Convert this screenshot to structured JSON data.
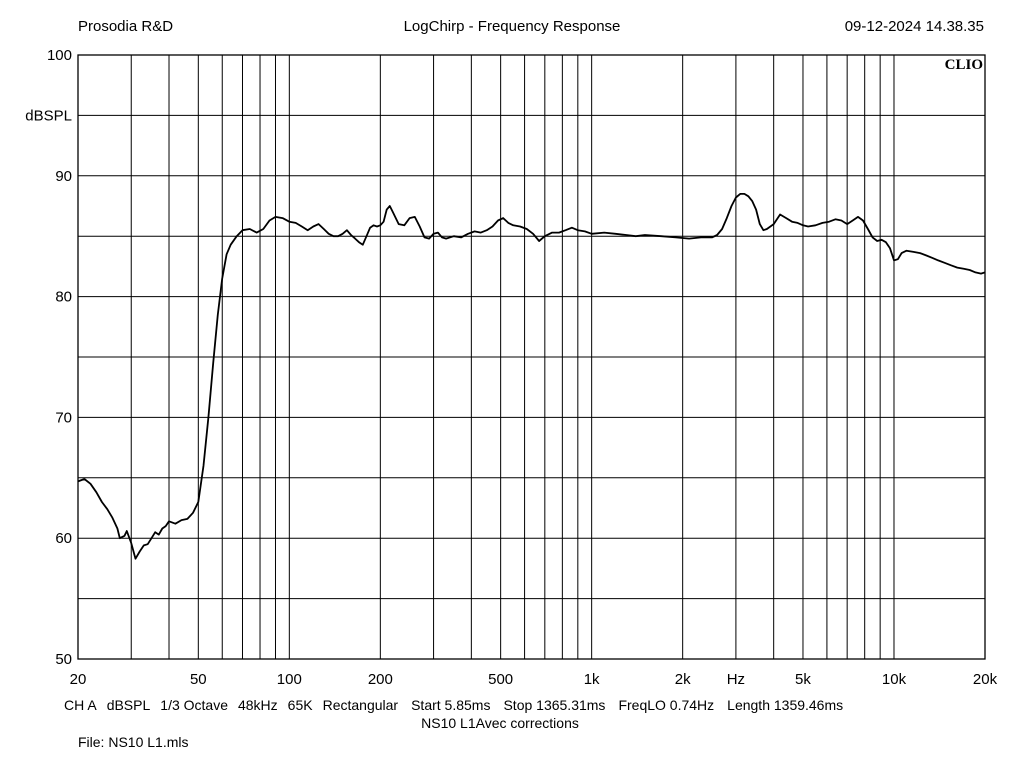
{
  "header": {
    "left": "Prosodia R&D",
    "center": "LogChirp - Frequency Response",
    "right": "09-12-2024 14.38.35"
  },
  "brand": "CLIO",
  "footer": {
    "info": [
      "CH A",
      "dBSPL",
      "1/3 Octave",
      "48kHz",
      "65K",
      "Rectangular",
      "Start 5.85ms",
      "Stop 1365.31ms",
      "FreqLO 0.74Hz",
      "Length 1359.46ms"
    ],
    "subtitle": "NS10 L1Avec corrections",
    "file": "File: NS10 L1.mls"
  },
  "chart_data": {
    "type": "line",
    "title": "LogChirp - Frequency Response",
    "xlabel": "Hz",
    "ylabel": "dBSPL",
    "x_scale": "log",
    "xlim": [
      20,
      20000
    ],
    "ylim": [
      50,
      100
    ],
    "grid": true,
    "x_ticks": [
      {
        "value": 20,
        "label": "20"
      },
      {
        "value": 50,
        "label": "50"
      },
      {
        "value": 100,
        "label": "100"
      },
      {
        "value": 200,
        "label": "200"
      },
      {
        "value": 500,
        "label": "500"
      },
      {
        "value": 1000,
        "label": "1k"
      },
      {
        "value": 2000,
        "label": "2k"
      },
      {
        "value": 3000,
        "label": "Hz"
      },
      {
        "value": 5000,
        "label": "5k"
      },
      {
        "value": 10000,
        "label": "10k"
      },
      {
        "value": 20000,
        "label": "20k"
      }
    ],
    "y_ticks": [
      {
        "value": 100,
        "label": "100"
      },
      {
        "value": 95,
        "label": "dBSPL"
      },
      {
        "value": 90,
        "label": "90"
      },
      {
        "value": 80,
        "label": "80"
      },
      {
        "value": 70,
        "label": "70"
      },
      {
        "value": 60,
        "label": "60"
      },
      {
        "value": 50,
        "label": "50"
      }
    ],
    "series": [
      {
        "color": "#000000",
        "points": [
          [
            20,
            64.7
          ],
          [
            21,
            64.9
          ],
          [
            22,
            64.5
          ],
          [
            23,
            63.8
          ],
          [
            24,
            63.0
          ],
          [
            25,
            62.4
          ],
          [
            26,
            61.7
          ],
          [
            27,
            60.8
          ],
          [
            27.5,
            60.0
          ],
          [
            28.5,
            60.2
          ],
          [
            29,
            60.6
          ],
          [
            30,
            59.6
          ],
          [
            31,
            58.3
          ],
          [
            32,
            58.9
          ],
          [
            33,
            59.4
          ],
          [
            34,
            59.5
          ],
          [
            35,
            60.0
          ],
          [
            36,
            60.5
          ],
          [
            37,
            60.3
          ],
          [
            38,
            60.8
          ],
          [
            39,
            61.0
          ],
          [
            40,
            61.4
          ],
          [
            42,
            61.2
          ],
          [
            44,
            61.5
          ],
          [
            46,
            61.6
          ],
          [
            48,
            62.1
          ],
          [
            50,
            63.0
          ],
          [
            52,
            66.0
          ],
          [
            54,
            70.0
          ],
          [
            56,
            74.5
          ],
          [
            58,
            78.5
          ],
          [
            60,
            81.5
          ],
          [
            62,
            83.5
          ],
          [
            64,
            84.3
          ],
          [
            67,
            85.0
          ],
          [
            70,
            85.5
          ],
          [
            74,
            85.6
          ],
          [
            78,
            85.3
          ],
          [
            82,
            85.6
          ],
          [
            86,
            86.3
          ],
          [
            90,
            86.6
          ],
          [
            95,
            86.5
          ],
          [
            100,
            86.2
          ],
          [
            105,
            86.1
          ],
          [
            110,
            85.8
          ],
          [
            115,
            85.5
          ],
          [
            120,
            85.8
          ],
          [
            125,
            86.0
          ],
          [
            130,
            85.6
          ],
          [
            135,
            85.2
          ],
          [
            140,
            85.0
          ],
          [
            145,
            85.0
          ],
          [
            150,
            85.2
          ],
          [
            155,
            85.5
          ],
          [
            160,
            85.1
          ],
          [
            165,
            84.8
          ],
          [
            170,
            84.5
          ],
          [
            175,
            84.3
          ],
          [
            180,
            85.0
          ],
          [
            185,
            85.7
          ],
          [
            190,
            85.9
          ],
          [
            195,
            85.8
          ],
          [
            200,
            85.9
          ],
          [
            205,
            86.2
          ],
          [
            210,
            87.2
          ],
          [
            215,
            87.5
          ],
          [
            220,
            87.0
          ],
          [
            230,
            86.0
          ],
          [
            240,
            85.9
          ],
          [
            250,
            86.5
          ],
          [
            260,
            86.6
          ],
          [
            270,
            85.8
          ],
          [
            280,
            84.9
          ],
          [
            290,
            84.8
          ],
          [
            300,
            85.2
          ],
          [
            310,
            85.3
          ],
          [
            320,
            84.9
          ],
          [
            330,
            84.8
          ],
          [
            350,
            85.0
          ],
          [
            370,
            84.9
          ],
          [
            390,
            85.2
          ],
          [
            410,
            85.4
          ],
          [
            430,
            85.3
          ],
          [
            450,
            85.5
          ],
          [
            470,
            85.8
          ],
          [
            490,
            86.3
          ],
          [
            510,
            86.5
          ],
          [
            530,
            86.1
          ],
          [
            550,
            85.9
          ],
          [
            580,
            85.8
          ],
          [
            610,
            85.6
          ],
          [
            640,
            85.2
          ],
          [
            670,
            84.6
          ],
          [
            700,
            85.0
          ],
          [
            740,
            85.3
          ],
          [
            780,
            85.3
          ],
          [
            820,
            85.5
          ],
          [
            860,
            85.7
          ],
          [
            900,
            85.5
          ],
          [
            950,
            85.4
          ],
          [
            1000,
            85.2
          ],
          [
            1100,
            85.3
          ],
          [
            1200,
            85.2
          ],
          [
            1300,
            85.1
          ],
          [
            1400,
            85.0
          ],
          [
            1500,
            85.1
          ],
          [
            1700,
            85.0
          ],
          [
            1900,
            84.9
          ],
          [
            2100,
            84.8
          ],
          [
            2300,
            84.9
          ],
          [
            2500,
            84.9
          ],
          [
            2600,
            85.1
          ],
          [
            2700,
            85.6
          ],
          [
            2800,
            86.5
          ],
          [
            2900,
            87.5
          ],
          [
            3000,
            88.2
          ],
          [
            3100,
            88.5
          ],
          [
            3200,
            88.5
          ],
          [
            3300,
            88.3
          ],
          [
            3400,
            87.9
          ],
          [
            3500,
            87.2
          ],
          [
            3600,
            86.0
          ],
          [
            3700,
            85.5
          ],
          [
            3800,
            85.6
          ],
          [
            4000,
            86.0
          ],
          [
            4200,
            86.8
          ],
          [
            4400,
            86.5
          ],
          [
            4600,
            86.2
          ],
          [
            4800,
            86.1
          ],
          [
            5000,
            85.9
          ],
          [
            5200,
            85.8
          ],
          [
            5500,
            85.9
          ],
          [
            5800,
            86.1
          ],
          [
            6100,
            86.2
          ],
          [
            6400,
            86.4
          ],
          [
            6700,
            86.3
          ],
          [
            7000,
            86.0
          ],
          [
            7300,
            86.3
          ],
          [
            7600,
            86.6
          ],
          [
            7900,
            86.3
          ],
          [
            8200,
            85.6
          ],
          [
            8500,
            84.9
          ],
          [
            8800,
            84.6
          ],
          [
            9100,
            84.7
          ],
          [
            9400,
            84.5
          ],
          [
            9700,
            84.0
          ],
          [
            10000,
            83.0
          ],
          [
            10300,
            83.1
          ],
          [
            10600,
            83.6
          ],
          [
            11000,
            83.8
          ],
          [
            11600,
            83.7
          ],
          [
            12200,
            83.6
          ],
          [
            12800,
            83.4
          ],
          [
            13400,
            83.2
          ],
          [
            14000,
            83.0
          ],
          [
            14700,
            82.8
          ],
          [
            15400,
            82.6
          ],
          [
            16200,
            82.4
          ],
          [
            17000,
            82.3
          ],
          [
            17800,
            82.2
          ],
          [
            18600,
            82.0
          ],
          [
            19400,
            81.9
          ],
          [
            20000,
            82.0
          ]
        ]
      }
    ]
  }
}
